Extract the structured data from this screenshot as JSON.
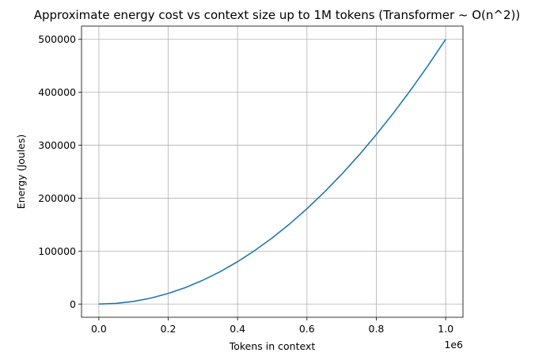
{
  "chart_data": {
    "type": "line",
    "title": "Approximate energy cost vs context size up to 1M tokens (Transformer ~ O(n^2))",
    "xlabel": "Tokens in context",
    "ylabel": "Energy (Joules)",
    "x_offset_label": "1e6",
    "xlim": [
      -50000,
      1050000
    ],
    "ylim": [
      -25000,
      525000
    ],
    "x_ticks": [
      0,
      200000,
      400000,
      600000,
      800000,
      1000000
    ],
    "x_tick_labels": [
      "0.0",
      "0.2",
      "0.4",
      "0.6",
      "0.8",
      "1.0"
    ],
    "y_ticks": [
      0,
      100000,
      200000,
      300000,
      400000,
      500000
    ],
    "y_tick_labels": [
      "0",
      "100000",
      "200000",
      "300000",
      "400000",
      "500000"
    ],
    "grid": true,
    "series": [
      {
        "color": "#1f77b4",
        "x": [
          0,
          50000,
          100000,
          150000,
          200000,
          250000,
          300000,
          350000,
          400000,
          450000,
          500000,
          550000,
          600000,
          650000,
          700000,
          750000,
          800000,
          850000,
          900000,
          950000,
          1000000
        ],
        "y": [
          0,
          1250,
          5000,
          11250,
          20000,
          31250,
          45000,
          61250,
          80000,
          101250,
          125000,
          151250,
          180000,
          211250,
          245000,
          281250,
          320000,
          361250,
          405000,
          451250,
          500000
        ]
      }
    ]
  }
}
